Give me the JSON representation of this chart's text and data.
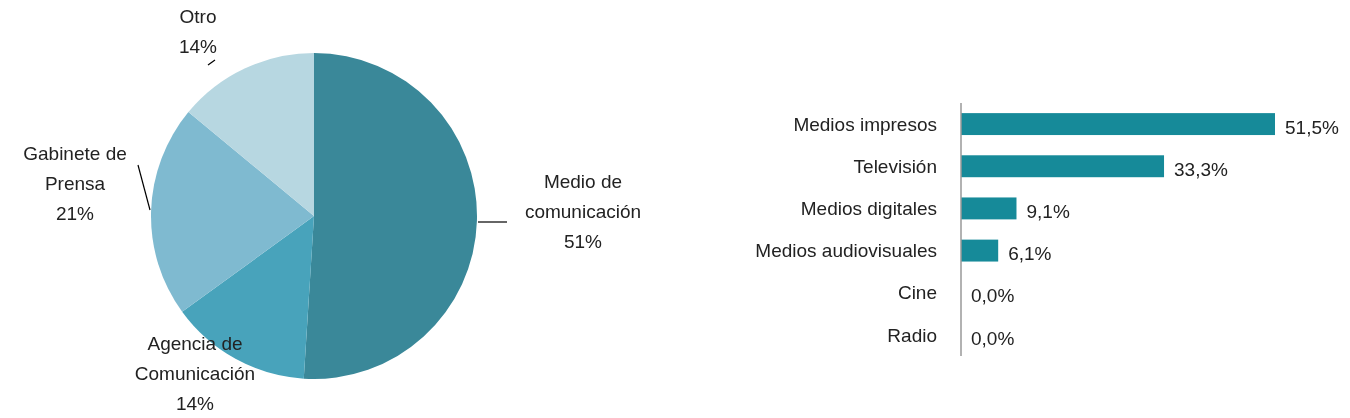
{
  "chart_data": [
    {
      "type": "pie",
      "categories": [
        "Medio de comunicación",
        "Agencia de Comunicación",
        "Gabinete de Prensa",
        "Otro"
      ],
      "values": [
        51,
        14,
        21,
        14
      ],
      "colors": [
        "#3a8899",
        "#48a3bb",
        "#7fbad0",
        "#b7d7e1"
      ],
      "value_labels": [
        "51%",
        "14%",
        "21%",
        "14%"
      ]
    },
    {
      "type": "bar",
      "orientation": "horizontal",
      "categories": [
        "Medios impresos",
        "Televisión",
        "Medios digitales",
        "Medios audiovisuales",
        "Cine",
        "Radio"
      ],
      "values": [
        51.5,
        33.3,
        9.1,
        6.1,
        0,
        0
      ],
      "color": "#168a99",
      "value_labels": [
        "51,5%",
        "33,3%",
        "9,1%",
        "6,1%",
        "0,0%",
        "0,0%"
      ]
    }
  ]
}
